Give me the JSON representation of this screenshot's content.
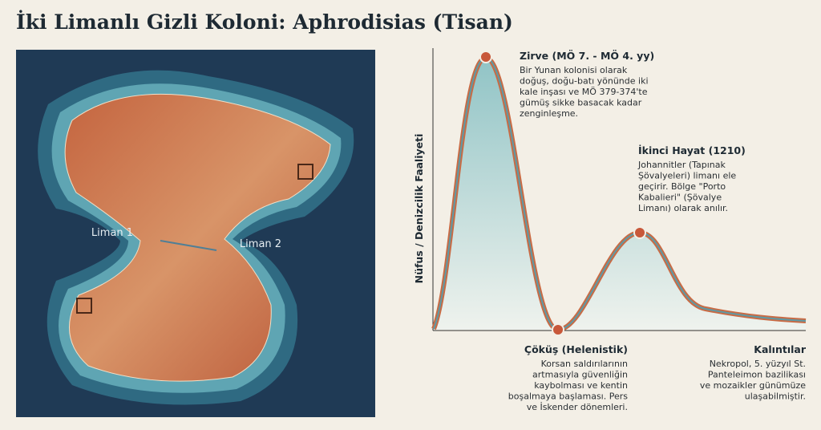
{
  "header": {
    "title": "İki Limanlı Gizli Koloni: Aphrodisias (Tisan)"
  },
  "map": {
    "labels": [
      "Liman 1",
      "Liman 2"
    ]
  },
  "timeline": {
    "y_axis_label": "Nüfus / Denizcilik Faaliyeti",
    "annotations": [
      {
        "title": "Zirve (MÖ 7. - MÖ 4. yy)",
        "lines": [
          "Bir Yunan kolonisi olarak",
          "doğuş, doğu-batı yönünde iki",
          "kale inşası ve MÖ 379-374'te",
          "gümüş sikke basacak kadar",
          "zenginleşme."
        ]
      },
      {
        "title": "İkinci Hayat (1210)",
        "lines": [
          "Johannitler (Tapınak",
          "Şövalyeleri) limanı ele",
          "geçirir. Bölge \"Porto",
          "Kabalieri\" (Şövalye",
          "Limanı) olarak anılır."
        ]
      },
      {
        "title": "Çöküş (Helenistik)",
        "lines": [
          "Korsan saldırılarının",
          "artmasıyla güvenliğin",
          "kaybolması ve kentin",
          "boşalmaya başlaması. Pers",
          "ve İskender dönemleri."
        ]
      },
      {
        "title": "Kalıntılar",
        "lines": [
          "Nekropol, 5. yüzyıl St.",
          "Panteleimon bazilikası",
          "ve mozaikler günümüze",
          "ulaşabilmiştir."
        ]
      }
    ]
  }
}
